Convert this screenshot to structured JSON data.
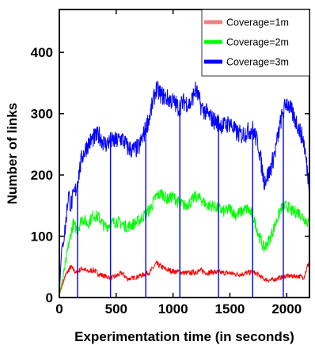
{
  "chart_data": {
    "type": "line",
    "xlabel": "Experimentation time (in seconds)",
    "ylabel": "Number of links",
    "xlim": [
      0,
      2200
    ],
    "ylim": [
      0,
      470
    ],
    "xticks": [
      0,
      500,
      1000,
      1500,
      2000
    ],
    "yticks": [
      0,
      100,
      200,
      300,
      400
    ],
    "legend_position": "top-right",
    "grid": false,
    "series": [
      {
        "name": "Coverage=1m",
        "color": "#ff0000",
        "legend_color": "#f08080",
        "points": [
          [
            0,
            5
          ],
          [
            50,
            35
          ],
          [
            100,
            50
          ],
          [
            150,
            40
          ],
          [
            200,
            48
          ],
          [
            250,
            42
          ],
          [
            300,
            45
          ],
          [
            350,
            38
          ],
          [
            400,
            35
          ],
          [
            450,
            32
          ],
          [
            500,
            35
          ],
          [
            550,
            40
          ],
          [
            600,
            30
          ],
          [
            650,
            32
          ],
          [
            700,
            35
          ],
          [
            750,
            38
          ],
          [
            800,
            42
          ],
          [
            850,
            55
          ],
          [
            900,
            50
          ],
          [
            950,
            45
          ],
          [
            1000,
            43
          ],
          [
            1050,
            42
          ],
          [
            1100,
            40
          ],
          [
            1150,
            40
          ],
          [
            1200,
            42
          ],
          [
            1250,
            44
          ],
          [
            1300,
            40
          ],
          [
            1350,
            42
          ],
          [
            1400,
            41
          ],
          [
            1450,
            40
          ],
          [
            1500,
            40
          ],
          [
            1550,
            38
          ],
          [
            1600,
            38
          ],
          [
            1650,
            40
          ],
          [
            1700,
            42
          ],
          [
            1750,
            37
          ],
          [
            1800,
            30
          ],
          [
            1850,
            28
          ],
          [
            1900,
            30
          ],
          [
            1950,
            33
          ],
          [
            2000,
            35
          ],
          [
            2050,
            35
          ],
          [
            2100,
            35
          ],
          [
            2150,
            33
          ],
          [
            2200,
            60
          ]
        ],
        "drops": []
      },
      {
        "name": "Coverage=2m",
        "color": "#00ff00",
        "legend_color": "#00ff00",
        "points": [
          [
            0,
            5
          ],
          [
            50,
            50
          ],
          [
            80,
            85
          ],
          [
            120,
            120
          ],
          [
            160,
            110
          ],
          [
            200,
            130
          ],
          [
            250,
            120
          ],
          [
            300,
            135
          ],
          [
            350,
            130
          ],
          [
            400,
            115
          ],
          [
            450,
            120
          ],
          [
            500,
            125
          ],
          [
            550,
            120
          ],
          [
            600,
            115
          ],
          [
            650,
            120
          ],
          [
            700,
            125
          ],
          [
            750,
            135
          ],
          [
            800,
            145
          ],
          [
            850,
            165
          ],
          [
            900,
            170
          ],
          [
            950,
            160
          ],
          [
            1000,
            165
          ],
          [
            1050,
            155
          ],
          [
            1100,
            150
          ],
          [
            1150,
            155
          ],
          [
            1200,
            165
          ],
          [
            1250,
            160
          ],
          [
            1300,
            150
          ],
          [
            1350,
            150
          ],
          [
            1400,
            145
          ],
          [
            1450,
            140
          ],
          [
            1500,
            145
          ],
          [
            1550,
            135
          ],
          [
            1600,
            140
          ],
          [
            1650,
            145
          ],
          [
            1700,
            135
          ],
          [
            1750,
            105
          ],
          [
            1800,
            80
          ],
          [
            1850,
            95
          ],
          [
            1900,
            120
          ],
          [
            1950,
            145
          ],
          [
            2000,
            150
          ],
          [
            2050,
            140
          ],
          [
            2100,
            140
          ],
          [
            2150,
            130
          ],
          [
            2200,
            120
          ]
        ],
        "drops": [
          1060,
          1700
        ]
      },
      {
        "name": "Coverage=3m",
        "color": "#0000ff",
        "legend_color": "#0000ff",
        "points": [
          [
            0,
            5
          ],
          [
            20,
            80
          ],
          [
            50,
            110
          ],
          [
            80,
            170
          ],
          [
            100,
            150
          ],
          [
            150,
            180
          ],
          [
            200,
            230
          ],
          [
            250,
            250
          ],
          [
            300,
            260
          ],
          [
            350,
            265
          ],
          [
            400,
            250
          ],
          [
            450,
            255
          ],
          [
            500,
            255
          ],
          [
            550,
            260
          ],
          [
            600,
            245
          ],
          [
            650,
            240
          ],
          [
            700,
            245
          ],
          [
            750,
            270
          ],
          [
            800,
            300
          ],
          [
            850,
            340
          ],
          [
            900,
            330
          ],
          [
            950,
            325
          ],
          [
            1000,
            320
          ],
          [
            1050,
            310
          ],
          [
            1100,
            320
          ],
          [
            1150,
            315
          ],
          [
            1200,
            340
          ],
          [
            1250,
            310
          ],
          [
            1300,
            300
          ],
          [
            1350,
            290
          ],
          [
            1400,
            285
          ],
          [
            1450,
            280
          ],
          [
            1500,
            285
          ],
          [
            1550,
            270
          ],
          [
            1600,
            265
          ],
          [
            1650,
            270
          ],
          [
            1700,
            275
          ],
          [
            1750,
            250
          ],
          [
            1800,
            190
          ],
          [
            1850,
            205
          ],
          [
            1900,
            240
          ],
          [
            1950,
            290
          ],
          [
            2000,
            320
          ],
          [
            2050,
            300
          ],
          [
            2100,
            280
          ],
          [
            2150,
            255
          ],
          [
            2200,
            180
          ]
        ],
        "drops": [
          160,
          450,
          760,
          1060,
          1400,
          1700,
          1970
        ]
      }
    ]
  }
}
